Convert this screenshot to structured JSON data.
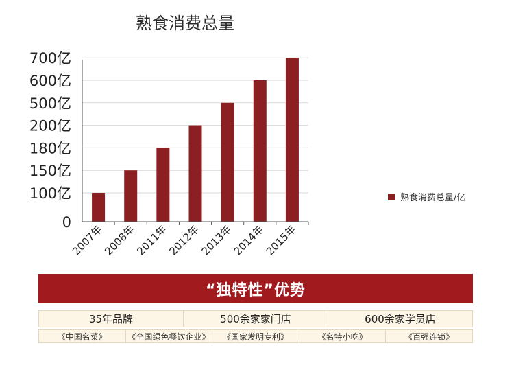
{
  "colors": {
    "bar": "#8b1f22",
    "banner": "#a01a1e",
    "axis": "#555555",
    "grid": "#d9d9d9"
  },
  "chart_data": {
    "type": "bar",
    "title": "熟食消费总量",
    "categories": [
      "2007年",
      "2008年",
      "2011年",
      "2012年",
      "2013年",
      "2014年",
      "2015年"
    ],
    "series": [
      {
        "name": "熟食消费总量/亿",
        "values": [
          100,
          150,
          180,
          200,
          500,
          600,
          700
        ]
      }
    ],
    "y_ticks": [
      "0",
      "100亿",
      "150亿",
      "180亿",
      "200亿",
      "500亿",
      "600亿",
      "700亿"
    ],
    "y_scale": "categorical ticks (unevenly spaced values, evenly spaced ticks)",
    "legend_position": "right",
    "grid": true,
    "xlabel": "",
    "ylabel": ""
  },
  "banner": {
    "text": "“独特性”优势"
  },
  "features": [
    "35年品牌",
    "500余家家门店",
    "600余家学员店"
  ],
  "honors": [
    "《中国名菜》",
    "《全国绿色餐饮企业》",
    "《国家发明专利》",
    "《名特小吃》",
    "《百强连锁》"
  ]
}
